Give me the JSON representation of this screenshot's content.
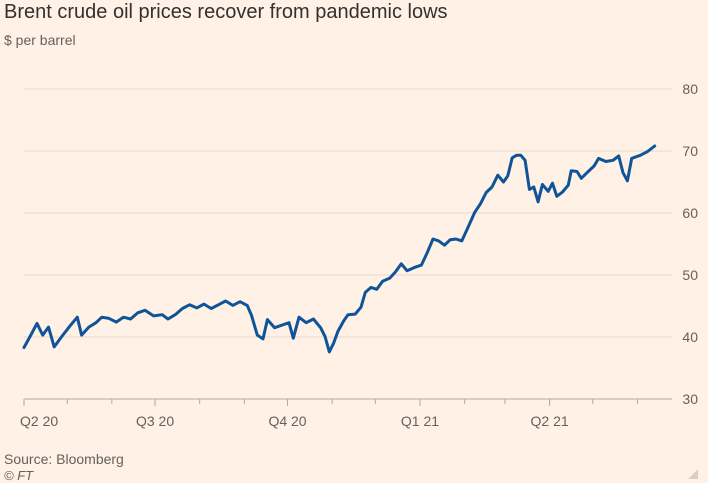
{
  "header": {
    "title": "Brent crude oil prices recover from pandemic lows",
    "subtitle": "$ per barrel"
  },
  "footer": {
    "source": "Source: Bloomberg",
    "credit": "© FT"
  },
  "colors": {
    "background": "#fff1e5",
    "line": "#0f5499",
    "grid": "#e6d9ce",
    "axis": "#b3a9a0",
    "text": "#66605c"
  },
  "chart_data": {
    "type": "line",
    "title": "Brent crude oil prices recover from pandemic lows",
    "ylabel": "$ per barrel",
    "xlabel": "",
    "ylim": [
      30,
      80
    ],
    "yticks": [
      30,
      40,
      50,
      60,
      70,
      80
    ],
    "y_axis_side": "right",
    "grid": true,
    "xlim": [
      "2020-04-01",
      "2021-06-25"
    ],
    "xticks": [
      {
        "date": "2020-04-01",
        "label": "Q2 20"
      },
      {
        "date": "2020-07-01",
        "label": "Q3 20"
      },
      {
        "date": "2020-10-01",
        "label": "Q4 20"
      },
      {
        "date": "2021-01-01",
        "label": "Q1 21"
      },
      {
        "date": "2021-04-01",
        "label": "Q2 21"
      }
    ],
    "series": [
      {
        "name": "",
        "points": [
          [
            "2020-04-01",
            38.3
          ],
          [
            "2020-04-05",
            40.0
          ],
          [
            "2020-04-10",
            42.2
          ],
          [
            "2020-04-14",
            40.3
          ],
          [
            "2020-04-18",
            41.6
          ],
          [
            "2020-04-22",
            38.4
          ],
          [
            "2020-04-27",
            40.0
          ],
          [
            "2020-05-03",
            41.8
          ],
          [
            "2020-05-08",
            43.2
          ],
          [
            "2020-05-11",
            40.3
          ],
          [
            "2020-05-16",
            41.6
          ],
          [
            "2020-05-21",
            42.3
          ],
          [
            "2020-05-25",
            43.2
          ],
          [
            "2020-05-30",
            43.0
          ],
          [
            "2020-06-04",
            42.4
          ],
          [
            "2020-06-09",
            43.2
          ],
          [
            "2020-06-14",
            42.9
          ],
          [
            "2020-06-19",
            43.9
          ],
          [
            "2020-06-24",
            44.3
          ],
          [
            "2020-06-30",
            43.4
          ],
          [
            "2020-07-06",
            43.6
          ],
          [
            "2020-07-10",
            42.9
          ],
          [
            "2020-07-15",
            43.6
          ],
          [
            "2020-07-20",
            44.6
          ],
          [
            "2020-07-25",
            45.2
          ],
          [
            "2020-07-30",
            44.7
          ],
          [
            "2020-08-04",
            45.3
          ],
          [
            "2020-08-09",
            44.6
          ],
          [
            "2020-08-14",
            45.2
          ],
          [
            "2020-08-19",
            45.8
          ],
          [
            "2020-08-24",
            45.1
          ],
          [
            "2020-08-29",
            45.7
          ],
          [
            "2020-09-03",
            45.1
          ],
          [
            "2020-09-06",
            43.5
          ],
          [
            "2020-09-10",
            40.3
          ],
          [
            "2020-09-14",
            39.7
          ],
          [
            "2020-09-17",
            42.8
          ],
          [
            "2020-09-22",
            41.5
          ],
          [
            "2020-09-27",
            41.9
          ],
          [
            "2020-10-02",
            42.3
          ],
          [
            "2020-10-05",
            39.8
          ],
          [
            "2020-10-09",
            43.2
          ],
          [
            "2020-10-14",
            42.3
          ],
          [
            "2020-10-19",
            42.9
          ],
          [
            "2020-10-24",
            41.5
          ],
          [
            "2020-10-27",
            40.1
          ],
          [
            "2020-10-30",
            37.6
          ],
          [
            "2020-11-02",
            39.0
          ],
          [
            "2020-11-05",
            40.9
          ],
          [
            "2020-11-09",
            42.6
          ],
          [
            "2020-11-12",
            43.6
          ],
          [
            "2020-11-17",
            43.7
          ],
          [
            "2020-11-21",
            44.8
          ],
          [
            "2020-11-24",
            47.2
          ],
          [
            "2020-11-28",
            48.0
          ],
          [
            "2020-12-02",
            47.7
          ],
          [
            "2020-12-06",
            49.0
          ],
          [
            "2020-12-11",
            49.5
          ],
          [
            "2020-12-15",
            50.5
          ],
          [
            "2020-12-19",
            51.8
          ],
          [
            "2020-12-23",
            50.7
          ],
          [
            "2020-12-28",
            51.2
          ],
          [
            "2021-01-02",
            51.6
          ],
          [
            "2021-01-06",
            53.6
          ],
          [
            "2021-01-10",
            55.8
          ],
          [
            "2021-01-14",
            55.5
          ],
          [
            "2021-01-18",
            54.8
          ],
          [
            "2021-01-22",
            55.7
          ],
          [
            "2021-01-26",
            55.8
          ],
          [
            "2021-01-30",
            55.5
          ],
          [
            "2021-02-03",
            57.5
          ],
          [
            "2021-02-08",
            60.1
          ],
          [
            "2021-02-12",
            61.5
          ],
          [
            "2021-02-16",
            63.3
          ],
          [
            "2021-02-20",
            64.2
          ],
          [
            "2021-02-24",
            66.1
          ],
          [
            "2021-02-28",
            65.0
          ],
          [
            "2021-03-03",
            66.0
          ],
          [
            "2021-03-06",
            68.9
          ],
          [
            "2021-03-09",
            69.3
          ],
          [
            "2021-03-12",
            69.3
          ],
          [
            "2021-03-15",
            68.5
          ],
          [
            "2021-03-18",
            63.8
          ],
          [
            "2021-03-21",
            64.2
          ],
          [
            "2021-03-24",
            61.8
          ],
          [
            "2021-03-27",
            64.6
          ],
          [
            "2021-03-31",
            63.5
          ],
          [
            "2021-04-03",
            64.8
          ],
          [
            "2021-04-06",
            62.7
          ],
          [
            "2021-04-10",
            63.4
          ],
          [
            "2021-04-14",
            64.5
          ],
          [
            "2021-04-16",
            66.8
          ],
          [
            "2021-04-20",
            66.7
          ],
          [
            "2021-04-23",
            65.6
          ],
          [
            "2021-04-27",
            66.5
          ],
          [
            "2021-05-02",
            67.6
          ],
          [
            "2021-05-05",
            68.8
          ],
          [
            "2021-05-10",
            68.3
          ],
          [
            "2021-05-15",
            68.5
          ],
          [
            "2021-05-19",
            69.2
          ],
          [
            "2021-05-22",
            66.5
          ],
          [
            "2021-05-25",
            65.2
          ],
          [
            "2021-05-28",
            68.8
          ],
          [
            "2021-06-03",
            69.3
          ],
          [
            "2021-06-08",
            69.9
          ],
          [
            "2021-06-13",
            70.8
          ]
        ]
      }
    ]
  }
}
